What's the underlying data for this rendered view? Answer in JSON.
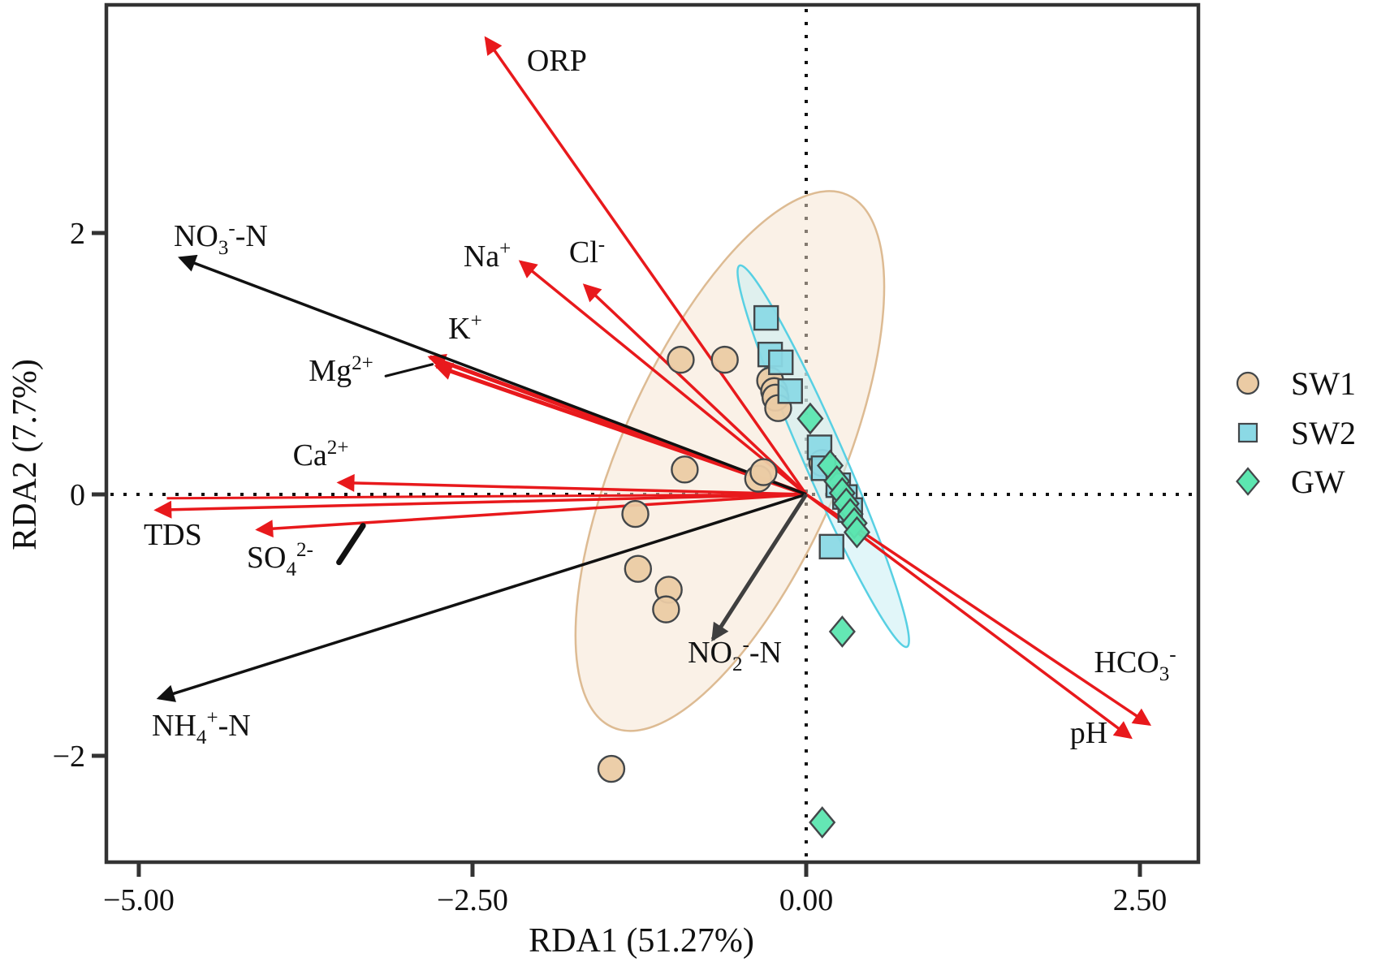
{
  "chart_data": {
    "type": "scatter",
    "subtype": "rda-triplot",
    "xlabel": "RDA1 (51.27%)",
    "ylabel": "RDA2 (7.7%)",
    "x_axis": {
      "lim": [
        -5.243,
        2.938
      ],
      "ticks": [
        -5.0,
        -2.5,
        0.0,
        2.5
      ],
      "tick_labels": [
        "−5.00",
        "−2.50",
        "0.00",
        "2.50"
      ]
    },
    "y_axis": {
      "lim": [
        -2.814,
        3.745
      ],
      "ticks": [
        2,
        0,
        -2
      ],
      "tick_labels": [
        "2",
        "0",
        "−2"
      ]
    },
    "grid": "dotted-zero-lines",
    "colors": {
      "arrow_red": "#E8191C",
      "arrow_black": "#111111",
      "arrow_dark": "#3F3F3F",
      "frame": "#333333",
      "sw1_fill": "#EBCBA4",
      "sw2_fill": "#8BD9E5",
      "gw_fill": "#5CE6B0",
      "marker_stroke": "#43474A",
      "ellipse1_stroke": "#DDBB93",
      "ellipse1_fill": "#F5E3CF",
      "ellipse2_stroke": "#58D0E3",
      "ellipse2_fill": "#C9EFF4"
    },
    "groups": [
      {
        "id": "SW1",
        "marker": "circle"
      },
      {
        "id": "SW2",
        "marker": "square"
      },
      {
        "id": "GW",
        "marker": "diamond"
      }
    ],
    "points": {
      "SW1": [
        [
          -0.94,
          1.03
        ],
        [
          -0.61,
          1.03
        ],
        [
          -0.27,
          0.87
        ],
        [
          -0.24,
          0.79
        ],
        [
          -0.23,
          0.74
        ],
        [
          -0.21,
          0.66
        ],
        [
          -0.91,
          0.19
        ],
        [
          -0.36,
          0.12
        ],
        [
          -0.32,
          0.17
        ],
        [
          0.12,
          0.24
        ],
        [
          -1.28,
          -0.15
        ],
        [
          -1.26,
          -0.57
        ],
        [
          -1.03,
          -0.73
        ],
        [
          -1.05,
          -0.88
        ],
        [
          -1.46,
          -2.1
        ]
      ],
      "SW2": [
        [
          -0.3,
          1.35
        ],
        [
          -0.27,
          1.07
        ],
        [
          -0.19,
          1.01
        ],
        [
          -0.12,
          0.79
        ],
        [
          0.1,
          0.36
        ],
        [
          0.13,
          0.2
        ],
        [
          0.24,
          0.07
        ],
        [
          0.29,
          -0.02
        ],
        [
          0.33,
          -0.12
        ],
        [
          0.19,
          -0.4
        ]
      ],
      "GW": [
        [
          0.03,
          0.58
        ],
        [
          0.18,
          0.22
        ],
        [
          0.23,
          0.1
        ],
        [
          0.27,
          0.01
        ],
        [
          0.3,
          -0.07
        ],
        [
          0.33,
          -0.15
        ],
        [
          0.36,
          -0.22
        ],
        [
          0.38,
          -0.29
        ],
        [
          0.27,
          -1.05
        ],
        [
          0.12,
          -2.51
        ]
      ]
    },
    "ellipses": [
      {
        "group": "SW1",
        "cx": -0.572,
        "cy": 0.255,
        "a": 2.18,
        "b": 0.82,
        "angle": 66.2,
        "stroke": "#DDBB93",
        "fill": "#F5E3CF",
        "fill_opacity": 0.5
      },
      {
        "group": "SW2-GW",
        "cx": 0.128,
        "cy": 0.292,
        "a": 1.56,
        "b": 0.152,
        "angle": -66.3,
        "stroke": "#58D0E3",
        "fill": "#C9EFF4",
        "fill_opacity": 0.55
      }
    ],
    "arrows": [
      {
        "id": "orp",
        "color": "red",
        "w": 3.5,
        "tip": [
          -2.4,
          3.49
        ],
        "label": [
          [
            "ORP"
          ]
        ],
        "label_pos": [
          -1.868,
          3.323
        ]
      },
      {
        "id": "na",
        "color": "red",
        "w": 3.5,
        "tip": [
          -2.14,
          1.78
        ],
        "label": [
          [
            "Na"
          ],
          [
            "+",
            "sup"
          ]
        ],
        "label_pos": [
          -2.39,
          1.826
        ]
      },
      {
        "id": "cl",
        "color": "red",
        "w": 3.5,
        "tip": [
          -1.66,
          1.6
        ],
        "label": [
          [
            "Cl"
          ],
          [
            "-",
            "sup"
          ]
        ],
        "label_pos": [
          -1.642,
          1.857
        ]
      },
      {
        "id": "k",
        "color": "red",
        "w": 5,
        "tip": [
          -2.82,
          1.05
        ],
        "label": [
          [
            "K"
          ],
          [
            "+",
            "sup"
          ]
        ],
        "label_pos": [
          -2.555,
          1.273
        ]
      },
      {
        "id": "mg",
        "color": "red",
        "w": 5,
        "tip": [
          -2.77,
          0.98
        ],
        "label": [
          [
            "Mg"
          ],
          [
            "2+",
            "sup"
          ]
        ],
        "label_pos": [
          -3.485,
          0.95
        ]
      },
      {
        "id": "ca",
        "color": "red",
        "w": 3.5,
        "tip": [
          -3.5,
          0.09
        ],
        "label": [
          [
            "Ca"
          ],
          [
            "2+",
            "sup"
          ]
        ],
        "label_pos": [
          -3.637,
          0.304
        ]
      },
      {
        "id": "tds",
        "color": "red",
        "w": 3.5,
        "tip": [
          -4.87,
          -0.12
        ],
        "label": [
          [
            "TDS"
          ]
        ],
        "label_pos": [
          -4.745,
          -0.304
        ]
      },
      {
        "id": "tds2",
        "color": "red",
        "w": 3,
        "tip": [
          -4.79,
          -0.03
        ],
        "nohead": true
      },
      {
        "id": "so4",
        "color": "red",
        "w": 3.5,
        "tip": [
          -4.11,
          -0.27
        ],
        "label": [
          [
            "SO"
          ],
          [
            "4",
            "sub"
          ],
          [
            "2-",
            "sup"
          ]
        ],
        "label_pos": [
          -3.942,
          -0.478
        ]
      },
      {
        "id": "hco3",
        "color": "red",
        "w": 3.5,
        "tip": [
          2.57,
          -1.76
        ],
        "label": [
          [
            "HCO"
          ],
          [
            "3",
            "sub"
          ],
          [
            "-",
            "sup"
          ]
        ],
        "label_pos": [
          2.464,
          -1.28
        ]
      },
      {
        "id": "ph",
        "color": "red",
        "w": 3.5,
        "tip": [
          2.43,
          -1.86
        ],
        "label": [
          [
            "pH"
          ]
        ],
        "label_pos": [
          2.117,
          -1.82
        ]
      },
      {
        "id": "no3",
        "color": "black",
        "w": 3.5,
        "tip": [
          -4.69,
          1.81
        ],
        "label": [
          [
            "NO"
          ],
          [
            "3",
            "sub"
          ],
          [
            "-",
            "sup"
          ],
          [
            "-N"
          ]
        ],
        "label_pos": [
          -4.386,
          1.981
        ]
      },
      {
        "id": "nh4",
        "color": "black",
        "w": 3.5,
        "tip": [
          -4.85,
          -1.56
        ],
        "label": [
          [
            "NH"
          ],
          [
            "4",
            "sub"
          ],
          [
            "+",
            "sup"
          ],
          [
            "-N"
          ]
        ],
        "label_pos": [
          -4.532,
          -1.764
        ]
      },
      {
        "id": "no2",
        "color": "dark",
        "w": 5,
        "tip": [
          -0.7,
          -1.11
        ],
        "label": [
          [
            "NO"
          ],
          [
            "2",
            "sub"
          ],
          [
            "-",
            "sup"
          ],
          [
            "-N"
          ]
        ],
        "label_pos": [
          -0.535,
          -1.205
        ]
      }
    ],
    "extra_segments": [
      {
        "id": "so4-slash",
        "from": [
          -3.5,
          -0.52
        ],
        "to": [
          -3.32,
          -0.24
        ],
        "w": 7,
        "color": "#111111"
      },
      {
        "id": "mg-leader",
        "from": [
          -3.15,
          0.905
        ],
        "to": [
          -2.8,
          0.995
        ],
        "w": 3,
        "color": "#111111"
      }
    ],
    "legend": {
      "position": "right-outside",
      "items": [
        {
          "label": "SW1",
          "marker": "circle"
        },
        {
          "label": "SW2",
          "marker": "square"
        },
        {
          "label": "GW",
          "marker": "diamond"
        }
      ]
    }
  }
}
